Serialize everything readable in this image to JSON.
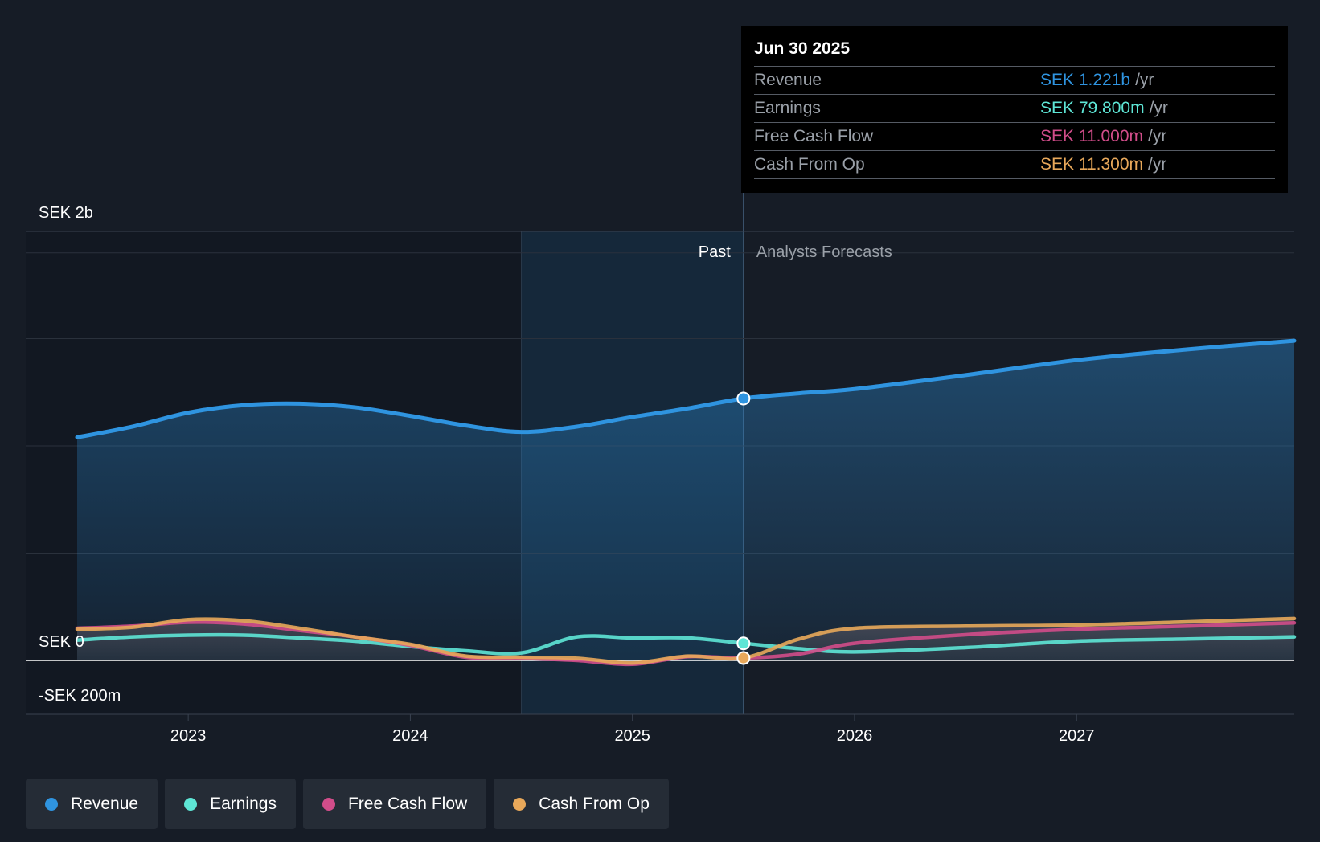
{
  "chart_data": {
    "type": "line",
    "currency": "SEK",
    "y_unit": "SEK millions",
    "ylim": [
      -200,
      2000
    ],
    "y_ticks": [
      {
        "value": 2000,
        "label": "SEK 2b"
      },
      {
        "value": 0,
        "label": "SEK 0"
      },
      {
        "value": -200,
        "label": "-SEK 200m"
      }
    ],
    "xlim": [
      2022.5,
      2027.98
    ],
    "x_ticks": [
      {
        "value": 2023,
        "label": "2023"
      },
      {
        "value": 2024,
        "label": "2024"
      },
      {
        "value": 2025,
        "label": "2025"
      },
      {
        "value": 2026,
        "label": "2026"
      },
      {
        "value": 2027,
        "label": "2027"
      }
    ],
    "past_label": "Past",
    "forecast_label": "Analysts Forecasts",
    "highlight_start": 2024.5,
    "divider": 2025.5,
    "series": [
      {
        "name": "Revenue",
        "color": "#2f94e0",
        "fill": true,
        "points": [
          [
            2022.5,
            1040
          ],
          [
            2022.75,
            1090
          ],
          [
            2023.0,
            1155
          ],
          [
            2023.25,
            1190
          ],
          [
            2023.5,
            1197
          ],
          [
            2023.75,
            1180
          ],
          [
            2024.0,
            1140
          ],
          [
            2024.25,
            1095
          ],
          [
            2024.5,
            1065
          ],
          [
            2024.75,
            1090
          ],
          [
            2025.0,
            1135
          ],
          [
            2025.25,
            1175
          ],
          [
            2025.5,
            1221
          ],
          [
            2025.75,
            1245
          ],
          [
            2026.0,
            1265
          ],
          [
            2026.5,
            1330
          ],
          [
            2027.0,
            1400
          ],
          [
            2027.5,
            1450
          ],
          [
            2027.98,
            1490
          ]
        ]
      },
      {
        "name": "Earnings",
        "color": "#5ee6d6",
        "fill": false,
        "points": [
          [
            2022.5,
            95
          ],
          [
            2022.75,
            110
          ],
          [
            2023.0,
            118
          ],
          [
            2023.25,
            118
          ],
          [
            2023.5,
            105
          ],
          [
            2023.75,
            90
          ],
          [
            2024.0,
            65
          ],
          [
            2024.25,
            45
          ],
          [
            2024.5,
            35
          ],
          [
            2024.75,
            110
          ],
          [
            2025.0,
            105
          ],
          [
            2025.25,
            105
          ],
          [
            2025.5,
            79.8
          ],
          [
            2025.75,
            55
          ],
          [
            2026.0,
            40
          ],
          [
            2026.5,
            60
          ],
          [
            2027.0,
            90
          ],
          [
            2027.5,
            100
          ],
          [
            2027.98,
            110
          ]
        ]
      },
      {
        "name": "Free Cash Flow",
        "color": "#d14d8a",
        "fill": false,
        "points": [
          [
            2022.5,
            150
          ],
          [
            2022.75,
            160
          ],
          [
            2023.0,
            178
          ],
          [
            2023.25,
            170
          ],
          [
            2023.5,
            140
          ],
          [
            2023.75,
            110
          ],
          [
            2024.0,
            70
          ],
          [
            2024.25,
            15
          ],
          [
            2024.5,
            10
          ],
          [
            2024.75,
            0
          ],
          [
            2025.0,
            -18
          ],
          [
            2025.25,
            18
          ],
          [
            2025.5,
            11
          ],
          [
            2025.75,
            30
          ],
          [
            2026.0,
            80
          ],
          [
            2026.5,
            120
          ],
          [
            2027.0,
            145
          ],
          [
            2027.5,
            160
          ],
          [
            2027.98,
            175
          ]
        ]
      },
      {
        "name": "Cash From Op",
        "color": "#e8a85a",
        "fill": false,
        "points": [
          [
            2022.5,
            145
          ],
          [
            2022.75,
            155
          ],
          [
            2023.0,
            190
          ],
          [
            2023.25,
            185
          ],
          [
            2023.5,
            150
          ],
          [
            2023.75,
            110
          ],
          [
            2024.0,
            75
          ],
          [
            2024.25,
            20
          ],
          [
            2024.5,
            15
          ],
          [
            2024.75,
            10
          ],
          [
            2025.0,
            -12
          ],
          [
            2025.25,
            20
          ],
          [
            2025.5,
            11.3
          ],
          [
            2025.75,
            100
          ],
          [
            2026.0,
            150
          ],
          [
            2026.5,
            160
          ],
          [
            2027.0,
            165
          ],
          [
            2027.5,
            180
          ],
          [
            2027.98,
            195
          ]
        ]
      }
    ]
  },
  "tooltip": {
    "date": "Jun 30 2025",
    "rows": [
      {
        "name": "Revenue",
        "value": "SEK 1.221b",
        "unit": "/yr",
        "color": "#2f94e0"
      },
      {
        "name": "Earnings",
        "value": "SEK 79.800m",
        "unit": "/yr",
        "color": "#5ee6d6"
      },
      {
        "name": "Free Cash Flow",
        "value": "SEK 11.000m",
        "unit": "/yr",
        "color": "#d14d8a"
      },
      {
        "name": "Cash From Op",
        "value": "SEK 11.300m",
        "unit": "/yr",
        "color": "#e8a85a"
      }
    ]
  },
  "legend": [
    {
      "label": "Revenue",
      "color": "#2f94e0"
    },
    {
      "label": "Earnings",
      "color": "#5ee6d6"
    },
    {
      "label": "Free Cash Flow",
      "color": "#d14d8a"
    },
    {
      "label": "Cash From Op",
      "color": "#e8a85a"
    }
  ]
}
